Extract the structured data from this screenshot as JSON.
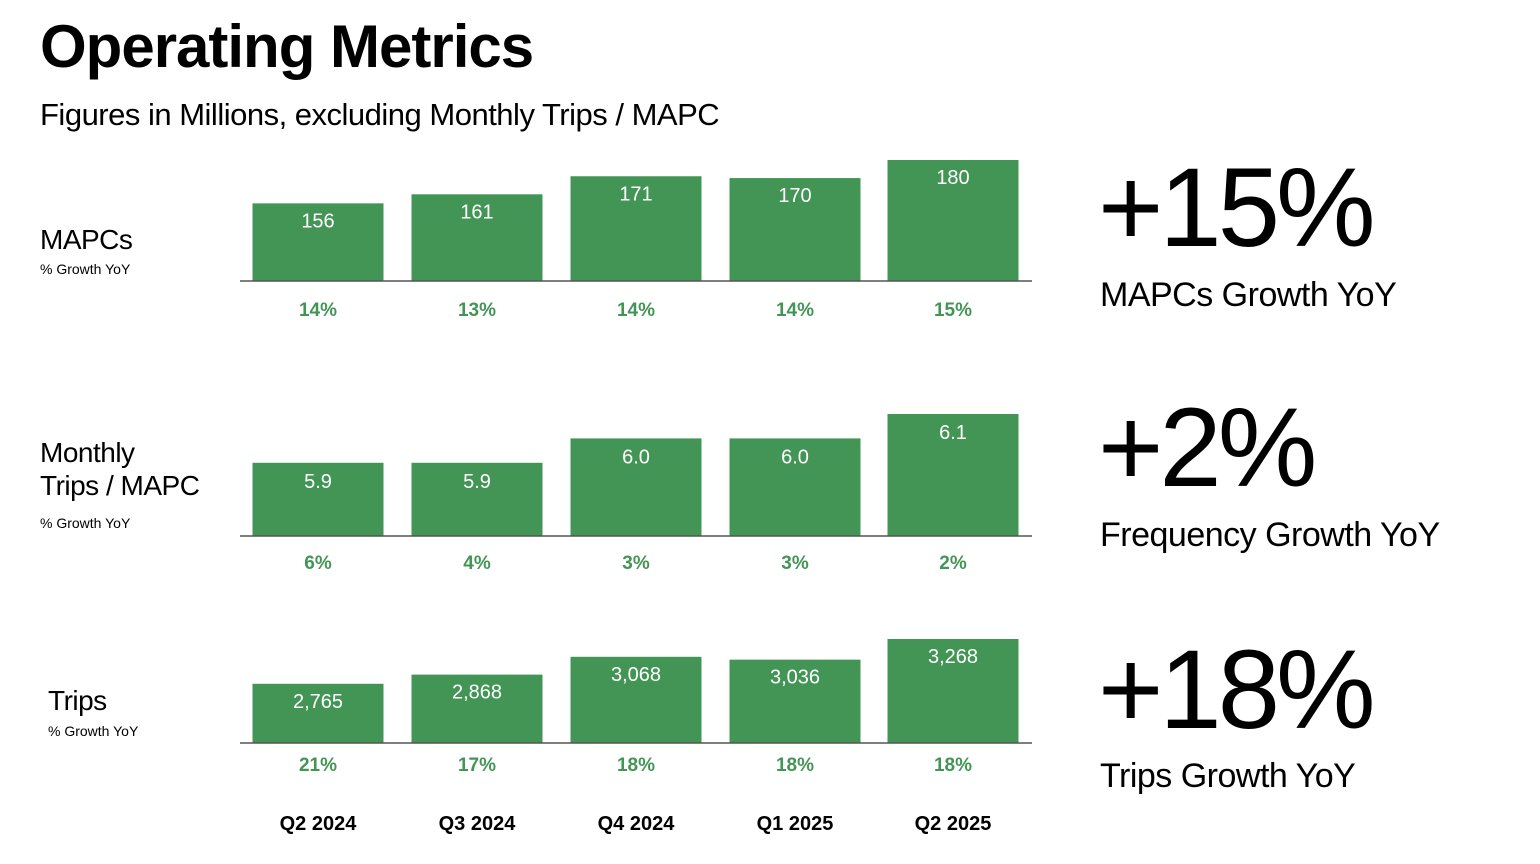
{
  "title": "Operating Metrics",
  "subtitle": "Figures in Millions, excluding Monthly Trips / MAPC",
  "rows": [
    {
      "label_line1": "MAPCs",
      "label_line2": "",
      "growth_caption": "% Growth YoY"
    },
    {
      "label_line1": "Monthly",
      "label_line2": "Trips / MAPC",
      "growth_caption": "% Growth YoY"
    },
    {
      "label_line1": "Trips",
      "label_line2": "",
      "growth_caption": "% Growth YoY"
    }
  ],
  "kpis": [
    {
      "value": "+15%",
      "label": "MAPCs Growth YoY"
    },
    {
      "value": "+2%",
      "label": "Frequency Growth YoY"
    },
    {
      "value": "+18%",
      "label": "Trips Growth YoY"
    }
  ],
  "colors": {
    "bar": "#439555",
    "growth_text": "#439555",
    "bar_text": "#ffffff"
  },
  "chart_data": [
    {
      "type": "bar",
      "name": "MAPCs",
      "categories": [
        "Q2 2024",
        "Q3 2024",
        "Q4 2024",
        "Q1 2025",
        "Q2 2025"
      ],
      "values": [
        156,
        161,
        171,
        170,
        180
      ],
      "value_labels": [
        "156",
        "161",
        "171",
        "170",
        "180"
      ],
      "growth_yoy": [
        "14%",
        "13%",
        "14%",
        "14%",
        "15%"
      ]
    },
    {
      "type": "bar",
      "name": "Monthly Trips / MAPC",
      "categories": [
        "Q2 2024",
        "Q3 2024",
        "Q4 2024",
        "Q1 2025",
        "Q2 2025"
      ],
      "values": [
        5.9,
        5.9,
        6.0,
        6.0,
        6.1
      ],
      "value_labels": [
        "5.9",
        "5.9",
        "6.0",
        "6.0",
        "6.1"
      ],
      "growth_yoy": [
        "6%",
        "4%",
        "3%",
        "3%",
        "2%"
      ]
    },
    {
      "type": "bar",
      "name": "Trips",
      "categories": [
        "Q2 2024",
        "Q3 2024",
        "Q4 2024",
        "Q1 2025",
        "Q2 2025"
      ],
      "values": [
        2765,
        2868,
        3068,
        3036,
        3268
      ],
      "value_labels": [
        "2,765",
        "2,868",
        "3,068",
        "3,036",
        "3,268"
      ],
      "growth_yoy": [
        "21%",
        "17%",
        "18%",
        "18%",
        "18%"
      ]
    }
  ]
}
